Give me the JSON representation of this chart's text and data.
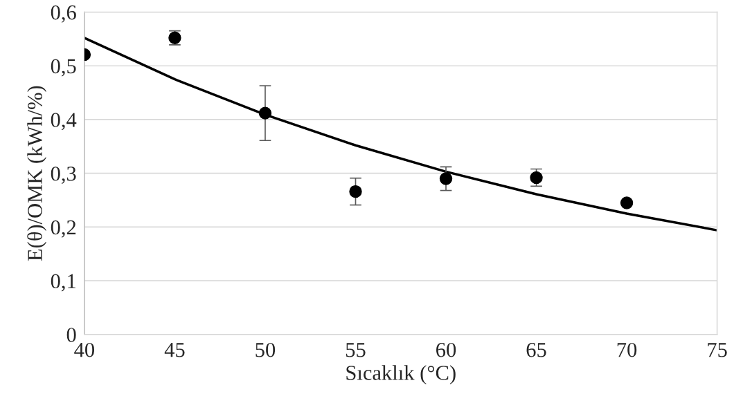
{
  "chart_data": {
    "type": "scatter",
    "xlabel": "Sıcaklık (°C)",
    "ylabel": "E(θ)/OMK (kWh/%)",
    "xlim": [
      40,
      75
    ],
    "xticks": [
      40,
      45,
      50,
      55,
      60,
      65,
      70,
      75
    ],
    "ylim": [
      0,
      0.6
    ],
    "yticks": [
      {
        "value": 0,
        "label": "0"
      },
      {
        "value": 0.1,
        "label": "0,1"
      },
      {
        "value": 0.2,
        "label": "0,2"
      },
      {
        "value": 0.3,
        "label": "0,3"
      },
      {
        "value": 0.4,
        "label": "0,4"
      },
      {
        "value": 0.5,
        "label": "0,5"
      },
      {
        "value": 0.6,
        "label": "0,6"
      }
    ],
    "grid": "y",
    "legend": false,
    "marker": "circle",
    "series": [
      {
        "color": "#000000",
        "x": [
          40,
          45,
          50,
          55,
          60,
          65,
          70
        ],
        "values": [
          0.521,
          0.552,
          0.412,
          0.266,
          0.29,
          0.292,
          0.245
        ],
        "errors": [
          null,
          0.013,
          0.051,
          0.025,
          0.022,
          0.016,
          null
        ]
      },
      {
        "type": "line",
        "color": "#000000",
        "marker": "none",
        "line_style": "solid",
        "x": [
          40,
          45,
          50,
          55,
          60,
          65,
          70,
          75
        ],
        "values": [
          0.552,
          0.475,
          0.409,
          0.352,
          0.303,
          0.261,
          0.225,
          0.194
        ]
      }
    ]
  }
}
